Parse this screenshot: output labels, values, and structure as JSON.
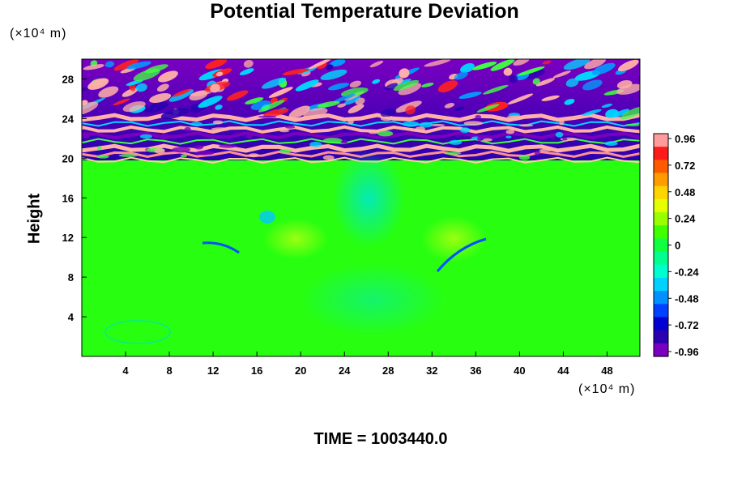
{
  "chart_data": {
    "type": "heatmap",
    "title": "Potential Temperature Deviation",
    "ylabel": "Height",
    "y_unit": "(×10⁴ m)",
    "x_unit": "(×10⁴ m)",
    "x_ticks": [
      "4",
      "8",
      "12",
      "16",
      "20",
      "24",
      "28",
      "32",
      "36",
      "40",
      "44",
      "48"
    ],
    "y_ticks": [
      "4",
      "8",
      "12",
      "16",
      "20",
      "24",
      "28"
    ],
    "xlim": [
      0,
      51
    ],
    "ylim": [
      0,
      30
    ],
    "colorbar": {
      "ticks": [
        "0.96",
        "0.72",
        "0.48",
        "0.24",
        "0",
        "-0.24",
        "-0.48",
        "-0.72",
        "-0.96"
      ],
      "range": [
        -0.96,
        0.96
      ],
      "colors": [
        "#ff9b9b",
        "#ff1a1a",
        "#ff5a00",
        "#ff9d00",
        "#ffd500",
        "#e6ff00",
        "#99ff00",
        "#40ff00",
        "#10ff40",
        "#00ff90",
        "#00ffd0",
        "#00d2ff",
        "#0090ff",
        "#0040ff",
        "#0000d0",
        "#2a00b0",
        "#7a00c0"
      ]
    },
    "time_label": "TIME = 1003440.0"
  }
}
